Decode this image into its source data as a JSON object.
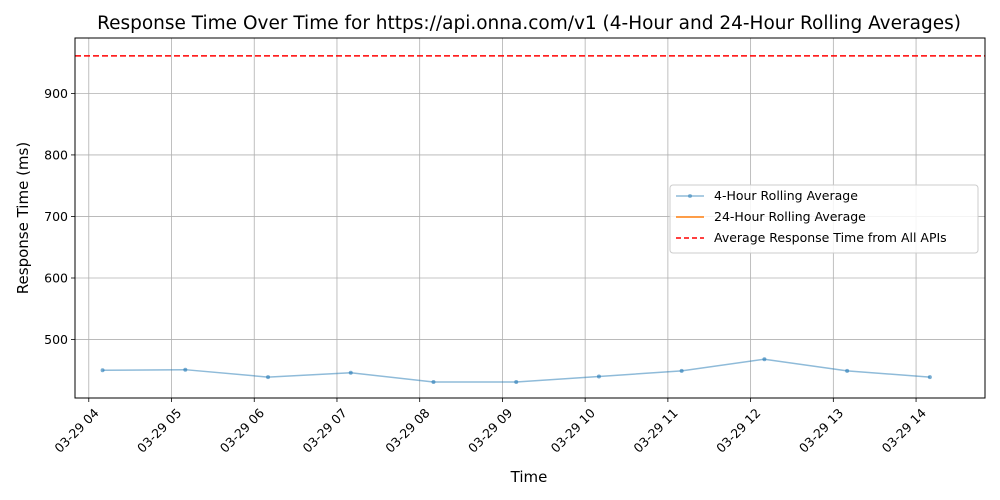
{
  "chart_data": {
    "type": "line",
    "title": "Response Time Over Time for https://api.onna.com/v1 (4-Hour and 24-Hour Rolling Averages)",
    "xlabel": "Time",
    "ylabel": "Response Time (ms)",
    "x_ticks": [
      "03-29 04",
      "03-29 05",
      "03-29 06",
      "03-29 07",
      "03-29 08",
      "03-29 09",
      "03-29 10",
      "03-29 11",
      "03-29 12",
      "03-29 13",
      "03-29 14"
    ],
    "y_ticks": [
      500,
      600,
      700,
      800,
      900
    ],
    "xlim": [
      "03-29 03:50",
      "03-29 14:50"
    ],
    "ylim": [
      405,
      990
    ],
    "grid": true,
    "legend_position": "center-right",
    "series": [
      {
        "name": "4-Hour Rolling Average",
        "color": "#1f77b4",
        "style": "solid-with-markers",
        "x": [
          "03-29 04:10",
          "03-29 05:10",
          "03-29 06:10",
          "03-29 07:10",
          "03-29 08:10",
          "03-29 09:10",
          "03-29 10:10",
          "03-29 11:10",
          "03-29 12:10",
          "03-29 13:10",
          "03-29 14:10"
        ],
        "values": [
          450,
          451,
          439,
          446,
          431,
          431,
          440,
          449,
          468,
          449,
          439
        ]
      },
      {
        "name": "24-Hour Rolling Average",
        "color": "#ff7f0e",
        "style": "solid",
        "x": [],
        "values": []
      }
    ],
    "reference_lines": [
      {
        "name": "Average Response Time from All APIs",
        "color": "#ff0000",
        "style": "dashed",
        "value": 961
      }
    ]
  }
}
